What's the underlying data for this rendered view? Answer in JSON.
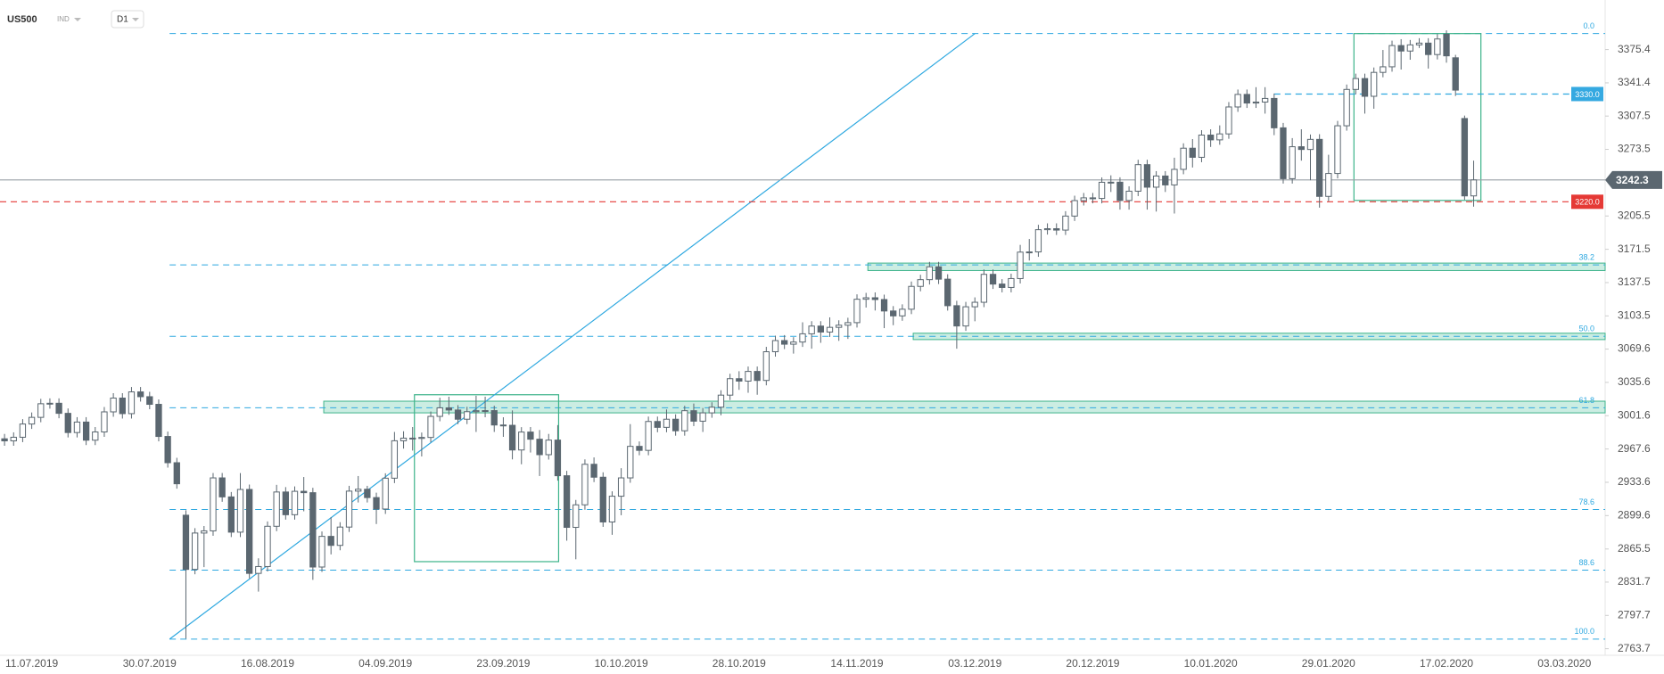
{
  "header": {
    "symbol": "US500",
    "kind": "IND",
    "interval": "D1"
  },
  "chart_data": {
    "type": "candlestick",
    "categories": [
      null,
      null,
      null,
      "11.07.2019",
      null,
      null,
      null,
      null,
      null,
      null,
      null,
      null,
      null,
      null,
      null,
      null,
      "30.07.2019",
      null,
      null,
      null,
      null,
      null,
      null,
      null,
      null,
      null,
      null,
      null,
      null,
      "16.08.2019",
      null,
      null,
      null,
      null,
      null,
      null,
      null,
      null,
      null,
      null,
      null,
      null,
      "04.09.2019",
      null,
      null,
      null,
      null,
      null,
      null,
      null,
      null,
      null,
      null,
      null,
      null,
      "23.09.2019",
      null,
      null,
      null,
      null,
      null,
      null,
      null,
      null,
      null,
      null,
      null,
      null,
      "10.10.2019",
      null,
      null,
      null,
      null,
      null,
      null,
      null,
      null,
      null,
      null,
      null,
      null,
      "28.10.2019",
      null,
      null,
      null,
      null,
      null,
      null,
      null,
      null,
      null,
      null,
      null,
      null,
      "14.11.2019",
      null,
      null,
      null,
      null,
      null,
      null,
      null,
      null,
      null,
      null,
      null,
      null,
      "03.12.2019",
      null,
      null,
      null,
      null,
      null,
      null,
      null,
      null,
      null,
      null,
      null,
      null,
      "20.12.2019",
      null,
      null,
      null,
      null,
      null,
      null,
      null,
      null,
      null,
      null,
      null,
      null,
      "10.01.2020",
      null,
      null,
      null,
      null,
      null,
      null,
      null,
      null,
      null,
      null,
      null,
      null,
      "29.01.2020",
      null,
      null,
      null,
      null,
      null,
      null,
      null,
      null,
      null,
      null,
      null,
      null,
      "17.02.2020",
      null,
      null,
      null,
      null,
      null,
      null,
      null,
      null,
      null,
      null,
      null,
      null,
      "03.03.2020",
      null,
      null,
      null,
      null
    ],
    "open": [
      2978.0,
      2975.9,
      2979.6,
      2993.1,
      2999.9,
      3013.8,
      3014.3,
      3004.0,
      2984.4,
      2995.1,
      2976.6,
      2985.0,
      3005.5,
      3019.6,
      3003.7,
      3025.9,
      3021.0,
      3013.2,
      2980.4,
      2953.6,
      2900.0,
      2844.7,
      2881.8,
      2884.0,
      2938.1,
      2918.7,
      2882.7,
      2926.3,
      2840.6,
      2847.6,
      2888.7,
      2923.7,
      2900.5,
      2924.4,
      2923.0,
      2847.1,
      2878.4,
      2869.2,
      2887.9,
      2924.6,
      2926.5,
      2918.0,
      2906.3,
      2937.8,
      2976.0,
      2978.7,
      2978.4,
      2979.4,
      3000.9,
      3009.6,
      3007.4,
      2998.0,
      3005.7,
      3006.7,
      3006.8,
      2992.1,
      2991.8,
      2966.6,
      2984.9,
      2977.6,
      2961.8,
      2976.7,
      2940.3,
      2887.6,
      2910.6,
      2952.0,
      2938.8,
      2893.1,
      2919.4,
      2938.1,
      2970.3,
      2966.2,
      2995.7,
      2989.7,
      2998.0,
      2986.2,
      3006.7,
      2996.0,
      3004.5,
      3010.3,
      3022.6,
      3039.4,
      3036.9,
      3046.8,
      3037.6,
      3066.9,
      3078.3,
      3074.6,
      3076.8,
      3085.2,
      3093.1,
      3087.0,
      3091.8,
      3094.0,
      3096.6,
      3120.5,
      3122.0,
      3120.2,
      3108.5,
      3103.5,
      3110.3,
      3133.6,
      3140.5,
      3153.6,
      3141.0,
      3113.9,
      3093.2,
      3112.8,
      3117.4,
      3145.9,
      3136.0,
      3132.5,
      3141.6,
      3168.6,
      3168.8,
      3191.5,
      3192.5,
      3191.1,
      3205.4,
      3221.2,
      3224.0,
      3223.4,
      3239.9,
      3240.0,
      3221.3,
      3230.8,
      3257.9,
      3234.9,
      3246.3,
      3237.2,
      3253.1,
      3274.7,
      3265.4,
      3288.1,
      3283.2,
      3289.3,
      3316.8,
      3329.6,
      3320.8,
      3321.8,
      3325.5,
      3295.5,
      3243.6,
      3276.2,
      3273.4,
      3283.7,
      3225.5,
      3248.9,
      3297.6,
      3334.7,
      3345.8,
      3327.7,
      3352.1,
      3357.8,
      3379.5,
      3373.9,
      3380.2,
      3382.0,
      3370.3,
      3391.0,
      3367.0,
      3305.0,
      3226.0,
      null,
      null,
      null,
      null,
      null,
      null,
      null,
      null,
      null,
      null,
      null,
      null,
      null,
      null
    ],
    "high": [
      2983.0,
      2984.6,
      2998.1,
      3004.9,
      3018.8,
      3019.3,
      3019.3,
      3009.0,
      3000.1,
      3000.1,
      2990.0,
      3010.5,
      3024.6,
      3024.6,
      3030.9,
      3030.9,
      3026.0,
      3018.2,
      2985.4,
      2958.6,
      2905.0,
      2886.8,
      2889.0,
      2943.1,
      2943.1,
      2923.7,
      2943.0,
      2931.3,
      2856.0,
      2893.7,
      2931.0,
      2928.7,
      2929.4,
      2939.0,
      2928.0,
      2883.4,
      2898.0,
      2892.9,
      2930.0,
      2940.0,
      2930.0,
      2923.0,
      2942.8,
      2985.0,
      2985.7,
      2990.0,
      2984.4,
      3005.9,
      3020.0,
      3021.0,
      3012.4,
      3010.7,
      3022.0,
      3021.0,
      3011.8,
      3000.0,
      3007.0,
      2989.9,
      2990.0,
      2987.0,
      2983.0,
      2992.0,
      2945.3,
      2915.6,
      2957.0,
      2959.0,
      2943.8,
      2924.4,
      2948.0,
      2993.0,
      2975.3,
      3000.7,
      3000.7,
      3008.0,
      3003.0,
      3011.7,
      3014.0,
      3009.5,
      3015.3,
      3027.6,
      3044.4,
      3047.0,
      3051.8,
      3051.8,
      3071.9,
      3083.3,
      3083.9,
      3081.8,
      3097.0,
      3098.1,
      3098.1,
      3102.0,
      3099.0,
      3101.6,
      3125.5,
      3127.0,
      3127.5,
      3125.2,
      3113.5,
      3115.3,
      3138.6,
      3145.5,
      3158.6,
      3158.6,
      3146.0,
      3118.9,
      3117.8,
      3122.4,
      3150.9,
      3150.9,
      3141.0,
      3146.6,
      3176.0,
      3182.0,
      3196.5,
      3198.0,
      3198.0,
      3210.4,
      3226.2,
      3229.0,
      3229.0,
      3244.9,
      3247.0,
      3245.0,
      3235.8,
      3262.9,
      3262.9,
      3251.3,
      3251.3,
      3265.0,
      3279.7,
      3284.0,
      3293.1,
      3294.0,
      3298.0,
      3321.8,
      3334.6,
      3334.6,
      3337.0,
      3337.0,
      3330.5,
      3300.5,
      3285.0,
      3294.0,
      3288.7,
      3289.0,
      3268.0,
      3302.6,
      3339.7,
      3350.8,
      3350.8,
      3357.1,
      3375.0,
      3384.5,
      3386.0,
      3385.2,
      3387.0,
      3387.0,
      3391.2,
      3395.0,
      3370.0,
      3308.0,
      3262.0,
      null,
      null,
      null,
      null,
      null,
      null,
      null,
      null,
      null,
      null,
      null,
      null,
      null,
      null
    ],
    "low": [
      2970.9,
      2970.9,
      2974.6,
      2988.1,
      2994.9,
      3008.8,
      2999.0,
      2979.4,
      2979.4,
      2971.6,
      2971.6,
      2980.0,
      3000.5,
      2998.7,
      2998.7,
      3016.0,
      3008.2,
      2975.4,
      2948.6,
      2927.1,
      2774.0,
      2839.7,
      2847.0,
      2879.0,
      2913.7,
      2877.7,
      2877.7,
      2835.6,
      2822.0,
      2842.6,
      2883.7,
      2895.5,
      2895.5,
      2904.0,
      2834.0,
      2842.1,
      2860.0,
      2864.2,
      2882.9,
      2913.0,
      2913.0,
      2891.0,
      2901.3,
      2932.8,
      2968.0,
      2966.0,
      2960.0,
      2974.4,
      2995.9,
      3002.4,
      2993.0,
      2993.0,
      2985.0,
      3000.0,
      2985.0,
      2980.0,
      2957.0,
      2952.0,
      2964.0,
      2940.0,
      2956.8,
      2935.3,
      2874.0,
      2855.0,
      2905.6,
      2933.8,
      2888.1,
      2880.0,
      2900.0,
      2933.1,
      2961.2,
      2961.2,
      2984.7,
      2984.7,
      2981.2,
      2981.2,
      2991.0,
      2985.0,
      2999.5,
      3002.0,
      3017.6,
      3028.0,
      3025.0,
      3023.0,
      3032.6,
      3061.9,
      3069.6,
      3065.0,
      3071.8,
      3070.0,
      3076.0,
      3082.0,
      3078.0,
      3080.0,
      3091.6,
      3112.0,
      3109.0,
      3091.0,
      3094.0,
      3098.5,
      3105.3,
      3128.6,
      3135.5,
      3136.0,
      3108.9,
      3070.0,
      3088.2,
      3098.0,
      3112.4,
      3131.0,
      3127.5,
      3127.5,
      3136.6,
      3160.0,
      3163.8,
      3186.5,
      3186.1,
      3186.1,
      3200.4,
      3216.2,
      3218.4,
      3218.4,
      3230.0,
      3212.0,
      3212.0,
      3225.8,
      3212.0,
      3210.0,
      3230.0,
      3208.0,
      3248.1,
      3255.0,
      3260.4,
      3276.0,
      3278.2,
      3284.3,
      3311.8,
      3315.8,
      3315.8,
      3310.0,
      3288.0,
      3238.6,
      3238.6,
      3262.0,
      3242.0,
      3214.0,
      3220.5,
      3243.9,
      3292.6,
      3329.7,
      3310.0,
      3315.0,
      3347.1,
      3352.8,
      3355.0,
      3365.0,
      3377.0,
      3356.0,
      3365.3,
      3362.0,
      3328.0,
      3222.0,
      3215.0,
      null,
      null,
      null,
      null,
      null,
      null,
      null,
      null,
      null,
      null,
      null,
      null,
      null,
      null
    ],
    "close": [
      2975.9,
      2979.6,
      2993.1,
      2999.9,
      3013.8,
      3014.3,
      3004.0,
      2984.4,
      2995.1,
      2976.6,
      2985.0,
      3005.5,
      3019.6,
      3003.7,
      3025.9,
      3021.0,
      3013.2,
      2980.4,
      2953.6,
      2932.1,
      2844.7,
      2881.8,
      2884.0,
      2938.1,
      2918.7,
      2882.7,
      2926.3,
      2840.6,
      2847.6,
      2888.7,
      2923.7,
      2900.5,
      2924.4,
      2923.0,
      2847.1,
      2878.4,
      2869.2,
      2887.9,
      2924.6,
      2926.5,
      2918.0,
      2906.3,
      2937.8,
      2976.0,
      2978.7,
      2978.4,
      2979.4,
      3000.9,
      3009.6,
      3007.4,
      2998.0,
      3005.7,
      3006.7,
      3006.8,
      2992.1,
      2991.8,
      2966.6,
      2984.9,
      2977.6,
      2961.8,
      2976.7,
      2940.3,
      2887.6,
      2910.6,
      2952.0,
      2938.8,
      2893.1,
      2919.4,
      2938.1,
      2970.3,
      2966.2,
      2995.7,
      2989.7,
      2998.0,
      2986.2,
      3006.7,
      2996.0,
      3004.5,
      3010.3,
      3022.6,
      3039.4,
      3036.9,
      3046.8,
      3037.6,
      3066.9,
      3078.3,
      3074.6,
      3076.8,
      3085.2,
      3093.1,
      3087.0,
      3091.8,
      3094.0,
      3096.6,
      3120.5,
      3122.0,
      3120.2,
      3108.5,
      3103.5,
      3110.3,
      3133.6,
      3140.5,
      3153.6,
      3141.0,
      3113.9,
      3093.2,
      3112.8,
      3117.4,
      3145.9,
      3136.0,
      3132.5,
      3141.6,
      3168.6,
      3168.8,
      3191.5,
      3192.5,
      3191.1,
      3205.4,
      3221.2,
      3224.0,
      3223.4,
      3239.9,
      3240.0,
      3221.3,
      3230.8,
      3257.9,
      3234.9,
      3246.3,
      3237.2,
      3253.1,
      3274.7,
      3265.4,
      3288.1,
      3283.2,
      3289.3,
      3316.8,
      3329.6,
      3320.8,
      3321.8,
      3325.5,
      3295.5,
      3243.6,
      3276.2,
      3273.4,
      3283.7,
      3225.5,
      3248.9,
      3297.6,
      3334.7,
      3345.8,
      3327.7,
      3352.1,
      3357.8,
      3379.5,
      3373.9,
      3380.2,
      3382.0,
      3370.3,
      3386.2,
      3369.0,
      3334.0,
      3226.0,
      3242.3,
      null,
      null,
      null,
      null,
      null,
      null,
      null,
      null,
      null,
      null,
      null,
      null,
      null,
      null
    ],
    "up_color": "#ffffff",
    "down_color": "#5b6770",
    "wick_color": "#5b6770",
    "ylim": [
      2757,
      3426
    ],
    "yticks": [
      3375.4,
      3341.4,
      3307.5,
      3273.5,
      3205.5,
      3171.5,
      3137.5,
      3103.5,
      3069.6,
      3035.6,
      3001.6,
      2967.6,
      2933.6,
      2899.6,
      2865.5,
      2831.7,
      2797.7,
      2763.7
    ],
    "hlines": [
      {
        "value": 3242.3,
        "color": "#9aa0a6",
        "style": "solid",
        "start": 0,
        "label_place": "axis",
        "label_color": "#5b6770"
      },
      {
        "value": 3220,
        "label": "3220.0",
        "color": "#e53935",
        "style": "dashed",
        "start": 0,
        "label_place": "plot",
        "label_color": "#e53935"
      },
      {
        "value": 3330,
        "label": "3330.0",
        "color": "#2ea8e0",
        "style": "dashed",
        "start": 140,
        "label_place": "plot",
        "label_color": "#35a9e1"
      }
    ],
    "fib": {
      "high": 3391.7,
      "low": 2773.5,
      "start": 18.2,
      "color": "#2ea8e0",
      "levels": [
        {
          "value": 0,
          "label": "0.0"
        },
        38.2,
        {
          "value": 50,
          "label": "50.0"
        },
        61.8,
        78.6,
        88.6,
        {
          "value": 100,
          "label": "100.0"
        }
      ]
    },
    "zones": [
      {
        "from": 35.2,
        "top": 3016.4,
        "bottom": 3004.5
      },
      {
        "from": 95.2,
        "top": 3157.4,
        "bottom": 3149.8
      },
      {
        "from": 100.2,
        "top": 3085.8,
        "bottom": 3079.3
      }
    ],
    "boxes": [
      {
        "x": [
          45.2,
          61.1
        ],
        "y": [
          2852.6,
          3023.0
        ]
      },
      {
        "x": [
          148.8,
          162.8
        ],
        "y": [
          3221.4,
          3391.7
        ]
      }
    ],
    "trendline": {
      "x": [
        18.2,
        107
      ],
      "y": [
        2773.5,
        3391.7
      ],
      "color": "#2ea8e0"
    }
  }
}
